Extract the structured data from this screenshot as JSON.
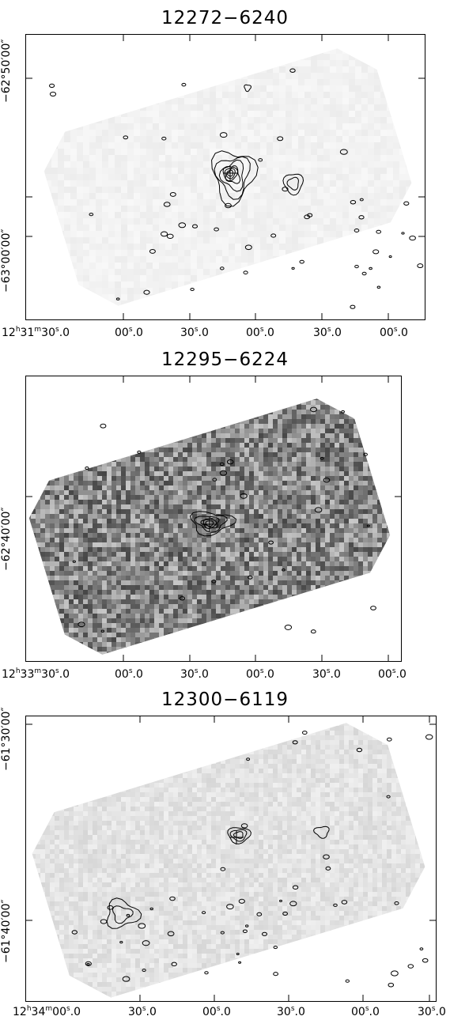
{
  "panels": [
    {
      "title": "12272−6240",
      "y_ticks": [
        "−62°50′00″",
        "−63°00′00″"
      ],
      "x_first": {
        "h": "12",
        "m": "31",
        "s": "30",
        "f": "0"
      },
      "x_ticks": [
        {
          "s": "00",
          "f": "0"
        },
        {
          "s": "30",
          "f": "0"
        },
        {
          "s": "00",
          "f": "0"
        },
        {
          "s": "30",
          "f": "0"
        },
        {
          "s": "00",
          "f": "0"
        }
      ],
      "background": "light"
    },
    {
      "title": "12295−6224",
      "y_ticks": [
        "−62°40′00″"
      ],
      "x_first": {
        "h": "12",
        "m": "33",
        "s": "30",
        "f": "0"
      },
      "x_ticks": [
        {
          "s": "00",
          "f": "0"
        },
        {
          "s": "30",
          "f": "0"
        },
        {
          "s": "00",
          "f": "0"
        },
        {
          "s": "30",
          "f": "0"
        },
        {
          "s": "00",
          "f": "0"
        }
      ],
      "background": "dark"
    },
    {
      "title": "12300−6119",
      "y_ticks": [
        "−61°30′00″",
        "−61°40′00″"
      ],
      "x_first": {
        "h": "12",
        "m": "34",
        "s": "00",
        "f": "0"
      },
      "x_ticks": [
        {
          "s": "30",
          "f": "0"
        },
        {
          "s": "00",
          "f": "0"
        },
        {
          "s": "30",
          "f": "0"
        },
        {
          "s": "00",
          "f": "0"
        },
        {
          "s": "30",
          "f": "0"
        }
      ],
      "background": "light"
    }
  ]
}
